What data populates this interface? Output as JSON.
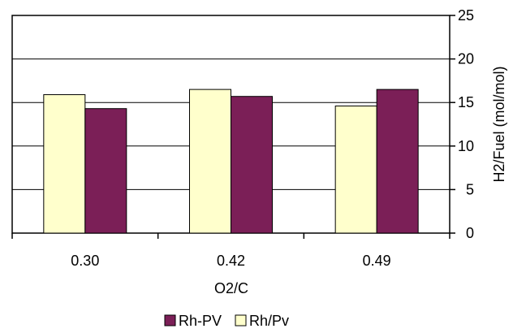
{
  "chart_data": {
    "type": "bar",
    "categories": [
      "0.30",
      "0.42",
      "0.49"
    ],
    "series": [
      {
        "name": "Rh/Pv",
        "color": "#FFFFCC",
        "values": [
          15.9,
          16.5,
          14.6
        ]
      },
      {
        "name": "Rh-PV",
        "color": "#7B1F57",
        "values": [
          14.3,
          15.7,
          16.5
        ]
      }
    ],
    "legend_order": [
      "Rh-PV",
      "Rh/Pv"
    ],
    "xlabel": "O2/C",
    "ylabel": "H2/Fuel (mol/mol)",
    "ylim": [
      0,
      25
    ],
    "yticks": [
      0,
      5,
      10,
      15,
      20,
      25
    ],
    "grid": true,
    "y_axis_side": "right",
    "legend_position": "bottom-center"
  }
}
